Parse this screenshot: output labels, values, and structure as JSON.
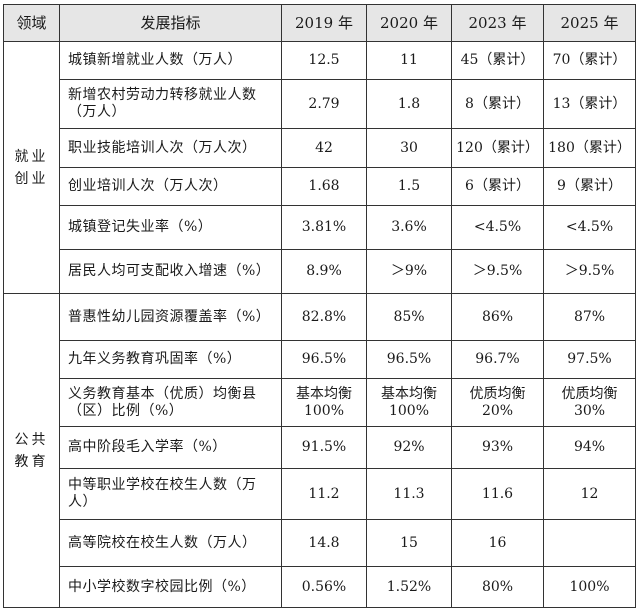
{
  "headers": [
    "领域",
    "发展指标",
    "2019 年",
    "2020 年",
    "2023 年",
    "2025 年"
  ],
  "domains": {
    "employment": "就业创业",
    "education": "公共教育"
  },
  "rows": [
    {
      "indicator": "城镇新增就业人数（万人）",
      "v2019": "12.5",
      "v2020": "11",
      "v2023": "45（累计）",
      "v2025": "70（累计）"
    },
    {
      "indicator": "新增农村劳动力转移就业人数（万人）",
      "v2019": "2.79",
      "v2020": "1.8",
      "v2023": "8（累计）",
      "v2025": "13（累计）"
    },
    {
      "indicator": "职业技能培训人次（万人次）",
      "v2019": "42",
      "v2020": "30",
      "v2023": "120（累计）",
      "v2025": "180（累计）"
    },
    {
      "indicator": "创业培训人次（万人次）",
      "v2019": "1.68",
      "v2020": "1.5",
      "v2023": "6（累计）",
      "v2025": "9（累计）"
    },
    {
      "indicator": "城镇登记失业率（%）",
      "v2019": "3.81%",
      "v2020": "3.6%",
      "v2023": "<4.5%",
      "v2025": "<4.5%"
    },
    {
      "indicator": "居民人均可支配收入增速（%）",
      "v2019": "8.9%",
      "v2020": "＞9%",
      "v2023": "＞9.5%",
      "v2025": "＞9.5%"
    },
    {
      "indicator": "普惠性幼儿园资源覆盖率（%）",
      "v2019": "82.8%",
      "v2020": "85%",
      "v2023": "86%",
      "v2025": "87%"
    },
    {
      "indicator": "九年义务教育巩固率（%）",
      "v2019": "96.5%",
      "v2020": "96.5%",
      "v2023": "96.7%",
      "v2025": "97.5%"
    },
    {
      "indicator": "义务教育基本（优质）均衡县（区）比例（%）",
      "v2019": "基本均衡\n100%",
      "v2020": "基本均衡\n100%",
      "v2023": "优质均衡\n20%",
      "v2025": "优质均衡\n30%"
    },
    {
      "indicator": "高中阶段毛入学率（%）",
      "v2019": "91.5%",
      "v2020": "92%",
      "v2023": "93%",
      "v2025": "94%"
    },
    {
      "indicator": "中等职业学校在校生人数（万人）",
      "v2019": "11.2",
      "v2020": "11.3",
      "v2023": "11.6",
      "v2025": "12"
    },
    {
      "indicator": "高等院校在校生人数（万人）",
      "v2019": "14.8",
      "v2020": "15",
      "v2023": "16",
      "v2025": ""
    },
    {
      "indicator": "中小学校数字校园比例（%）",
      "v2019": "0.56%",
      "v2020": "1.52%",
      "v2023": "80%",
      "v2025": "100%"
    }
  ]
}
